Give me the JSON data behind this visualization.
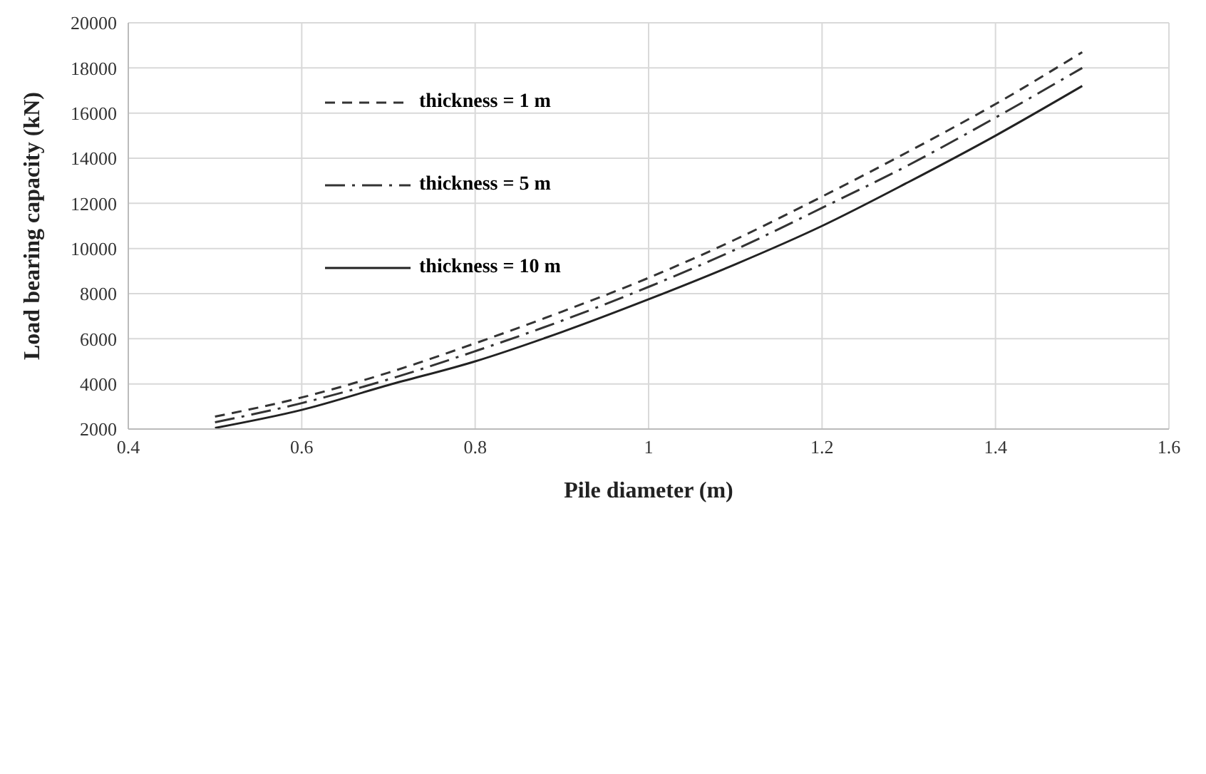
{
  "chart_data": {
    "type": "line",
    "xlabel": "Pile diameter (m)",
    "ylabel": "Load bearing capacity (kN)",
    "x": [
      0.5,
      0.6,
      0.7,
      0.8,
      0.9,
      1.0,
      1.1,
      1.2,
      1.3,
      1.4,
      1.5
    ],
    "series": [
      {
        "name": "thickness = 1 m",
        "color": "#333333",
        "line_style": "dashed",
        "values": [
          2550,
          3400,
          4500,
          5800,
          7200,
          8700,
          10400,
          12300,
          14300,
          16400,
          18700
        ]
      },
      {
        "name": "thickness = 5 m",
        "color": "#333333",
        "line_style": "dashdot",
        "values": [
          2300,
          3150,
          4200,
          5450,
          6800,
          8300,
          9950,
          11800,
          13700,
          15800,
          18000
        ]
      },
      {
        "name": "thickness = 10 m",
        "color": "#222222",
        "line_style": "solid",
        "values": [
          2050,
          2850,
          3950,
          5000,
          6300,
          7750,
          9300,
          11000,
          12950,
          15000,
          17200
        ]
      }
    ],
    "xlim": [
      0.4,
      1.6
    ],
    "xticks": [
      0.4,
      0.6,
      0.8,
      1,
      1.2,
      1.4,
      1.6
    ],
    "ylim": [
      2000,
      20000
    ],
    "yticks": [
      2000,
      4000,
      6000,
      8000,
      10000,
      12000,
      14000,
      16000,
      18000,
      20000
    ],
    "grid": true,
    "legend": "top left",
    "marker": "none"
  }
}
